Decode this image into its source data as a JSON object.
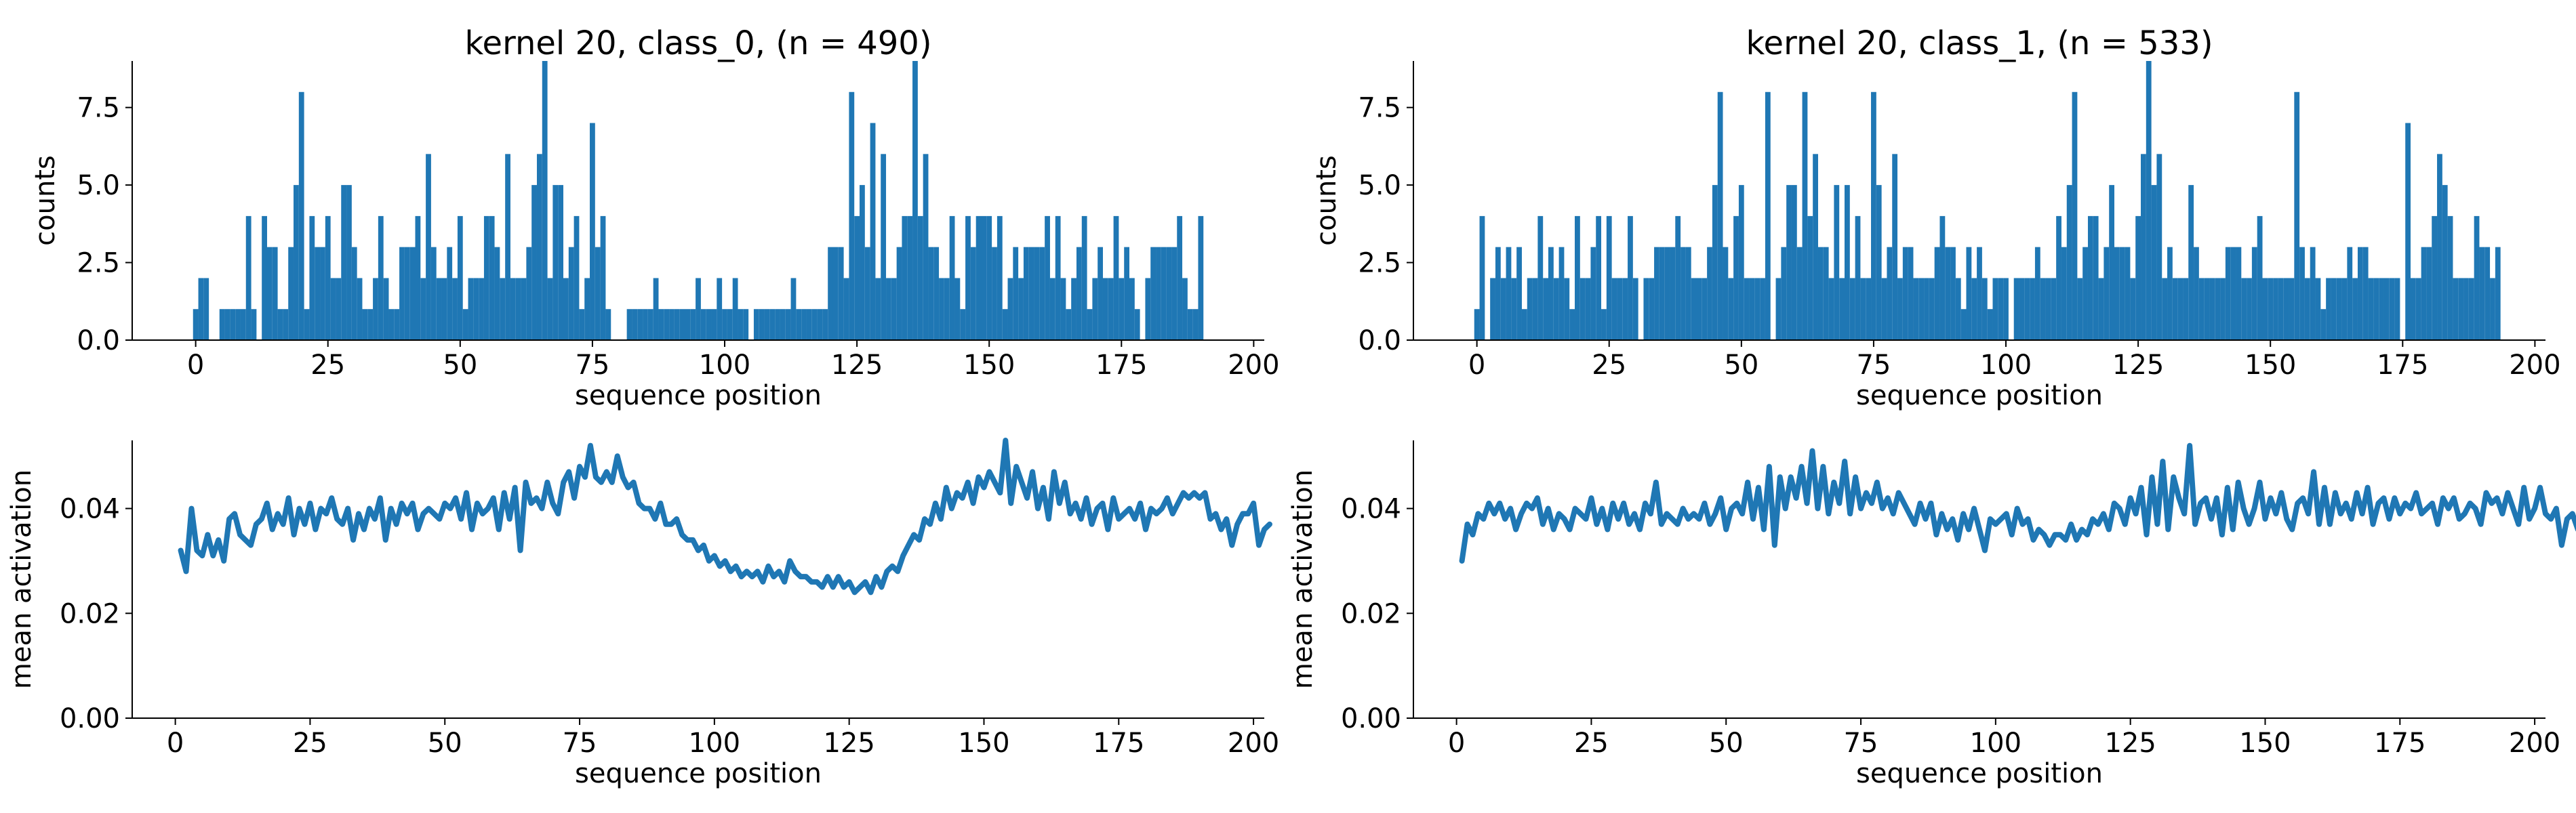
{
  "chart_data": [
    {
      "type": "bar",
      "title": "kernel 20, class_0, (n = 490)",
      "xlabel": "sequence position",
      "ylabel": "counts",
      "xlim": [
        -12,
        202
      ],
      "ylim": [
        0,
        9
      ],
      "xticks": [
        "0",
        "25",
        "50",
        "75",
        "100",
        "125",
        "150",
        "175",
        "200"
      ],
      "yticks": [
        "0.0",
        "2.5",
        "5.0",
        "7.5"
      ],
      "bin_width": 1,
      "color": "#1f77b4",
      "x_start": 0,
      "values": [
        1,
        2,
        2,
        0,
        0,
        1,
        1,
        1,
        1,
        1,
        4,
        1,
        0,
        4,
        3,
        3,
        1,
        1,
        3,
        5,
        8,
        1,
        4,
        3,
        3,
        4,
        2,
        2,
        5,
        5,
        3,
        2,
        1,
        1,
        2,
        4,
        2,
        1,
        1,
        3,
        3,
        3,
        4,
        2,
        6,
        3,
        2,
        2,
        3,
        2,
        4,
        1,
        2,
        2,
        2,
        4,
        4,
        3,
        2,
        6,
        2,
        2,
        2,
        3,
        5,
        6,
        9,
        2,
        5,
        5,
        2,
        3,
        4,
        1,
        2,
        7,
        3,
        4,
        1,
        0,
        0,
        0,
        1,
        1,
        1,
        1,
        1,
        2,
        1,
        1,
        1,
        1,
        1,
        1,
        1,
        2,
        1,
        1,
        1,
        2,
        1,
        1,
        2,
        1,
        1,
        0,
        1,
        1,
        1,
        1,
        1,
        1,
        1,
        2,
        1,
        1,
        1,
        1,
        1,
        1,
        3,
        3,
        3,
        2,
        8,
        4,
        5,
        3,
        7,
        2,
        6,
        2,
        2,
        3,
        4,
        4,
        9,
        4,
        6,
        3,
        3,
        2,
        2,
        4,
        2,
        1,
        4,
        3,
        4,
        4,
        4,
        3,
        4,
        1,
        2,
        3,
        2,
        3,
        3,
        3,
        3,
        4,
        2,
        4,
        2,
        1,
        2,
        3,
        4,
        1,
        2,
        3,
        2,
        2,
        4,
        2,
        3,
        2,
        1,
        0,
        2,
        3,
        3,
        3,
        3,
        3,
        4,
        2,
        1,
        1,
        4
      ],
      "grid": false,
      "legend": "none"
    },
    {
      "type": "bar",
      "title": "kernel 20, class_1, (n = 533)",
      "xlabel": "sequence position",
      "ylabel": "counts",
      "xlim": [
        -12,
        202
      ],
      "ylim": [
        0,
        9
      ],
      "xticks": [
        "0",
        "25",
        "50",
        "75",
        "100",
        "125",
        "150",
        "175",
        "200"
      ],
      "yticks": [
        "0.0",
        "2.5",
        "5.0",
        "7.5"
      ],
      "bin_width": 1,
      "color": "#1f77b4",
      "x_start": 0,
      "values": [
        1,
        4,
        0,
        2,
        3,
        2,
        3,
        2,
        3,
        1,
        2,
        2,
        4,
        2,
        3,
        2,
        3,
        2,
        1,
        4,
        2,
        2,
        3,
        4,
        1,
        4,
        2,
        2,
        2,
        4,
        2,
        0,
        2,
        2,
        3,
        3,
        3,
        3,
        4,
        3,
        3,
        2,
        2,
        2,
        3,
        5,
        8,
        3,
        2,
        4,
        5,
        2,
        2,
        2,
        2,
        8,
        0,
        2,
        3,
        5,
        5,
        3,
        8,
        4,
        6,
        3,
        3,
        2,
        5,
        2,
        5,
        2,
        4,
        2,
        2,
        8,
        5,
        2,
        3,
        6,
        2,
        3,
        3,
        2,
        2,
        2,
        2,
        3,
        4,
        3,
        3,
        2,
        1,
        3,
        2,
        3,
        2,
        1,
        2,
        2,
        2,
        0,
        2,
        2,
        2,
        2,
        3,
        2,
        2,
        2,
        4,
        3,
        5,
        8,
        2,
        3,
        4,
        4,
        2,
        3,
        5,
        3,
        3,
        3,
        2,
        4,
        6,
        9,
        5,
        6,
        2,
        3,
        2,
        2,
        2,
        5,
        3,
        2,
        2,
        2,
        2,
        2,
        3,
        3,
        3,
        2,
        2,
        3,
        4,
        2,
        2,
        2,
        2,
        2,
        2,
        8,
        3,
        2,
        3,
        2,
        1,
        2,
        2,
        2,
        2,
        3,
        2,
        3,
        3,
        2,
        2,
        2,
        2,
        2,
        2,
        0,
        7,
        2,
        2,
        3,
        3,
        4,
        6,
        5,
        4,
        2,
        2,
        2,
        2,
        4,
        3,
        3,
        2,
        3
      ],
      "grid": false,
      "legend": "none"
    },
    {
      "type": "line",
      "title": "",
      "xlabel": "sequence position",
      "ylabel": "mean activation",
      "xlim": [
        -8,
        202
      ],
      "ylim": [
        0,
        0.053
      ],
      "xticks": [
        "0",
        "25",
        "50",
        "75",
        "100",
        "125",
        "150",
        "175",
        "200"
      ],
      "yticks": [
        "0.00",
        "0.02",
        "0.04"
      ],
      "color": "#1f77b4",
      "x_start": 1,
      "values": [
        0.032,
        0.028,
        0.04,
        0.032,
        0.031,
        0.035,
        0.031,
        0.034,
        0.03,
        0.038,
        0.039,
        0.035,
        0.034,
        0.033,
        0.037,
        0.038,
        0.041,
        0.036,
        0.039,
        0.037,
        0.042,
        0.035,
        0.04,
        0.037,
        0.041,
        0.036,
        0.04,
        0.039,
        0.042,
        0.038,
        0.037,
        0.04,
        0.034,
        0.039,
        0.036,
        0.04,
        0.038,
        0.042,
        0.034,
        0.04,
        0.037,
        0.041,
        0.039,
        0.041,
        0.036,
        0.039,
        0.04,
        0.039,
        0.038,
        0.041,
        0.04,
        0.042,
        0.038,
        0.043,
        0.036,
        0.041,
        0.039,
        0.04,
        0.042,
        0.036,
        0.043,
        0.038,
        0.044,
        0.032,
        0.045,
        0.041,
        0.042,
        0.04,
        0.045,
        0.041,
        0.039,
        0.045,
        0.047,
        0.042,
        0.048,
        0.046,
        0.052,
        0.046,
        0.045,
        0.047,
        0.045,
        0.05,
        0.046,
        0.044,
        0.045,
        0.041,
        0.04,
        0.04,
        0.038,
        0.041,
        0.037,
        0.037,
        0.038,
        0.035,
        0.034,
        0.034,
        0.032,
        0.033,
        0.03,
        0.031,
        0.029,
        0.03,
        0.028,
        0.029,
        0.027,
        0.028,
        0.027,
        0.028,
        0.026,
        0.029,
        0.027,
        0.028,
        0.026,
        0.03,
        0.028,
        0.027,
        0.027,
        0.026,
        0.026,
        0.025,
        0.027,
        0.025,
        0.027,
        0.025,
        0.026,
        0.024,
        0.025,
        0.026,
        0.024,
        0.027,
        0.025,
        0.028,
        0.029,
        0.028,
        0.031,
        0.033,
        0.035,
        0.034,
        0.038,
        0.037,
        0.041,
        0.038,
        0.044,
        0.04,
        0.043,
        0.042,
        0.045,
        0.041,
        0.046,
        0.044,
        0.047,
        0.045,
        0.043,
        0.053,
        0.041,
        0.048,
        0.045,
        0.042,
        0.047,
        0.04,
        0.044,
        0.038,
        0.047,
        0.041,
        0.045,
        0.039,
        0.041,
        0.038,
        0.042,
        0.037,
        0.04,
        0.041,
        0.036,
        0.042,
        0.038,
        0.039,
        0.04,
        0.038,
        0.041,
        0.036,
        0.04,
        0.039,
        0.04,
        0.042,
        0.039,
        0.041,
        0.043,
        0.042,
        0.043,
        0.042,
        0.043,
        0.038,
        0.039,
        0.036,
        0.038,
        0.033,
        0.037,
        0.039,
        0.039,
        0.041,
        0.033,
        0.036,
        0.037
      ],
      "grid": false,
      "legend": "none"
    },
    {
      "type": "line",
      "title": "",
      "xlabel": "sequence position",
      "ylabel": "mean activation",
      "xlim": [
        -8,
        202
      ],
      "ylim": [
        0,
        0.053
      ],
      "xticks": [
        "0",
        "25",
        "50",
        "75",
        "100",
        "125",
        "150",
        "175",
        "200"
      ],
      "yticks": [
        "0.00",
        "0.02",
        "0.04"
      ],
      "color": "#1f77b4",
      "x_start": 1,
      "values": [
        0.03,
        0.037,
        0.035,
        0.039,
        0.038,
        0.041,
        0.039,
        0.041,
        0.038,
        0.04,
        0.036,
        0.039,
        0.041,
        0.04,
        0.042,
        0.037,
        0.04,
        0.036,
        0.039,
        0.038,
        0.036,
        0.04,
        0.039,
        0.038,
        0.042,
        0.037,
        0.04,
        0.036,
        0.041,
        0.038,
        0.041,
        0.037,
        0.039,
        0.036,
        0.041,
        0.039,
        0.045,
        0.037,
        0.039,
        0.038,
        0.037,
        0.04,
        0.038,
        0.039,
        0.038,
        0.041,
        0.037,
        0.039,
        0.042,
        0.036,
        0.04,
        0.041,
        0.039,
        0.045,
        0.038,
        0.044,
        0.036,
        0.048,
        0.033,
        0.046,
        0.04,
        0.046,
        0.042,
        0.048,
        0.041,
        0.051,
        0.04,
        0.048,
        0.039,
        0.045,
        0.041,
        0.049,
        0.039,
        0.046,
        0.04,
        0.043,
        0.041,
        0.045,
        0.04,
        0.042,
        0.039,
        0.043,
        0.041,
        0.039,
        0.037,
        0.041,
        0.038,
        0.041,
        0.035,
        0.039,
        0.036,
        0.038,
        0.034,
        0.039,
        0.036,
        0.04,
        0.036,
        0.032,
        0.038,
        0.037,
        0.038,
        0.039,
        0.035,
        0.04,
        0.037,
        0.038,
        0.034,
        0.036,
        0.035,
        0.033,
        0.035,
        0.035,
        0.034,
        0.037,
        0.034,
        0.036,
        0.035,
        0.038,
        0.037,
        0.039,
        0.036,
        0.041,
        0.04,
        0.037,
        0.042,
        0.039,
        0.044,
        0.035,
        0.046,
        0.037,
        0.049,
        0.036,
        0.046,
        0.042,
        0.039,
        0.052,
        0.037,
        0.041,
        0.042,
        0.038,
        0.042,
        0.035,
        0.044,
        0.036,
        0.045,
        0.04,
        0.037,
        0.04,
        0.045,
        0.038,
        0.042,
        0.039,
        0.043,
        0.038,
        0.036,
        0.041,
        0.042,
        0.039,
        0.047,
        0.037,
        0.044,
        0.037,
        0.043,
        0.039,
        0.041,
        0.038,
        0.043,
        0.039,
        0.044,
        0.037,
        0.041,
        0.042,
        0.038,
        0.042,
        0.039,
        0.041,
        0.04,
        0.043,
        0.039,
        0.04,
        0.041,
        0.037,
        0.042,
        0.04,
        0.042,
        0.038,
        0.039,
        0.041,
        0.04,
        0.037,
        0.043,
        0.041,
        0.042,
        0.039,
        0.043,
        0.04,
        0.037,
        0.044,
        0.038,
        0.04,
        0.044,
        0.039,
        0.038,
        0.04,
        0.033,
        0.038,
        0.039,
        0.036,
        0.043,
        0.037,
        0.042
      ]
    }
  ]
}
